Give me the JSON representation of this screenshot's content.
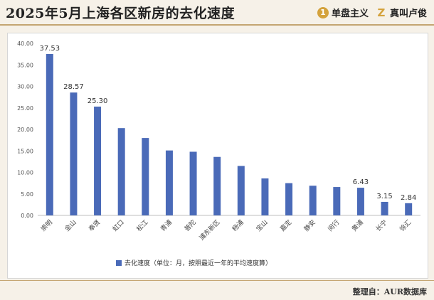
{
  "header": {
    "title": "2025年5月上海各区新房的去化速度",
    "logo1_mark": "1",
    "logo1_text": "单盘主义",
    "logo2_mark": "Z",
    "logo2_text": "真叫卢俊"
  },
  "footer": {
    "credit": "整理自：AUR数据库"
  },
  "colors": {
    "bar": "#4a6ab8",
    "background": "#f6f1e8",
    "accent": "#c4a572"
  },
  "chart_data": {
    "type": "bar",
    "title": "",
    "xlabel": "",
    "ylabel": "",
    "ylim": [
      0,
      40
    ],
    "yticks": [
      "0.00",
      "5.00",
      "10.00",
      "15.00",
      "20.00",
      "25.00",
      "30.00",
      "35.00",
      "40.00"
    ],
    "categories": [
      "崇明",
      "金山",
      "奉贤",
      "虹口",
      "松江",
      "青浦",
      "普陀",
      "浦东新区",
      "杨浦",
      "宝山",
      "嘉定",
      "静安",
      "闵行",
      "黄浦",
      "长宁",
      "徐汇"
    ],
    "series": [
      {
        "name": "去化速度（单位：月，按照最近一年的平均速度算）",
        "values": [
          37.53,
          28.57,
          25.3,
          20.3,
          18.0,
          15.1,
          14.8,
          13.6,
          11.5,
          8.6,
          7.5,
          6.9,
          6.6,
          6.43,
          3.15,
          2.84
        ]
      }
    ],
    "data_labels": [
      {
        "index": 0,
        "text": "37.53"
      },
      {
        "index": 1,
        "text": "28.57"
      },
      {
        "index": 2,
        "text": "25.30"
      },
      {
        "index": 13,
        "text": "6.43"
      },
      {
        "index": 14,
        "text": "3.15"
      },
      {
        "index": 15,
        "text": "2.84"
      }
    ],
    "grid": false,
    "legend_position": "bottom"
  }
}
